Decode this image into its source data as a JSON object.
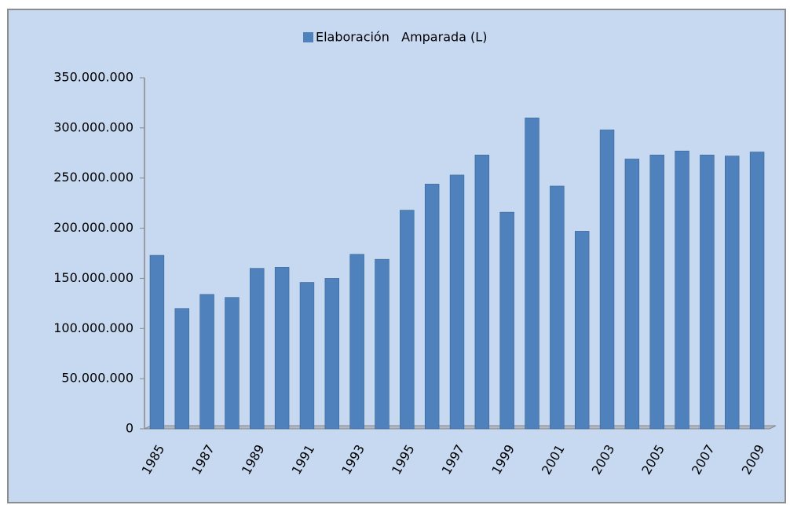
{
  "chart_data": {
    "type": "bar",
    "series": [
      {
        "name": "Elaboración   Amparada (L)",
        "color": "#4f81bd",
        "values": [
          173000000,
          120000000,
          134000000,
          131000000,
          160000000,
          161000000,
          146000000,
          150000000,
          174000000,
          169000000,
          218000000,
          244000000,
          253000000,
          273000000,
          216000000,
          310000000,
          242000000,
          197000000,
          298000000,
          269000000,
          273000000,
          277000000,
          273000000,
          272000000,
          276000000
        ]
      }
    ],
    "categories": [
      "1985",
      null,
      "1987",
      null,
      "1989",
      null,
      "1991",
      null,
      "1993",
      null,
      "1995",
      null,
      "1997",
      null,
      "1999",
      null,
      "2001",
      null,
      "2003",
      null,
      "2005",
      null,
      "2007",
      null,
      "2009"
    ],
    "ylim": [
      0,
      350000000
    ],
    "yticks": [
      0,
      {
        "value": 50000000,
        "label": "50.000.000"
      },
      {
        "value": 100000000,
        "label": "100.000.000"
      },
      {
        "value": 150000000,
        "label": "150.000.000"
      },
      {
        "value": 200000000,
        "label": "200.000.000"
      },
      {
        "value": 250000000,
        "label": "250.000.000"
      },
      {
        "value": 300000000,
        "label": "300.000.000"
      },
      {
        "value": 350000000,
        "label": "350.000.000"
      }
    ],
    "grid": false,
    "legend": "top"
  }
}
